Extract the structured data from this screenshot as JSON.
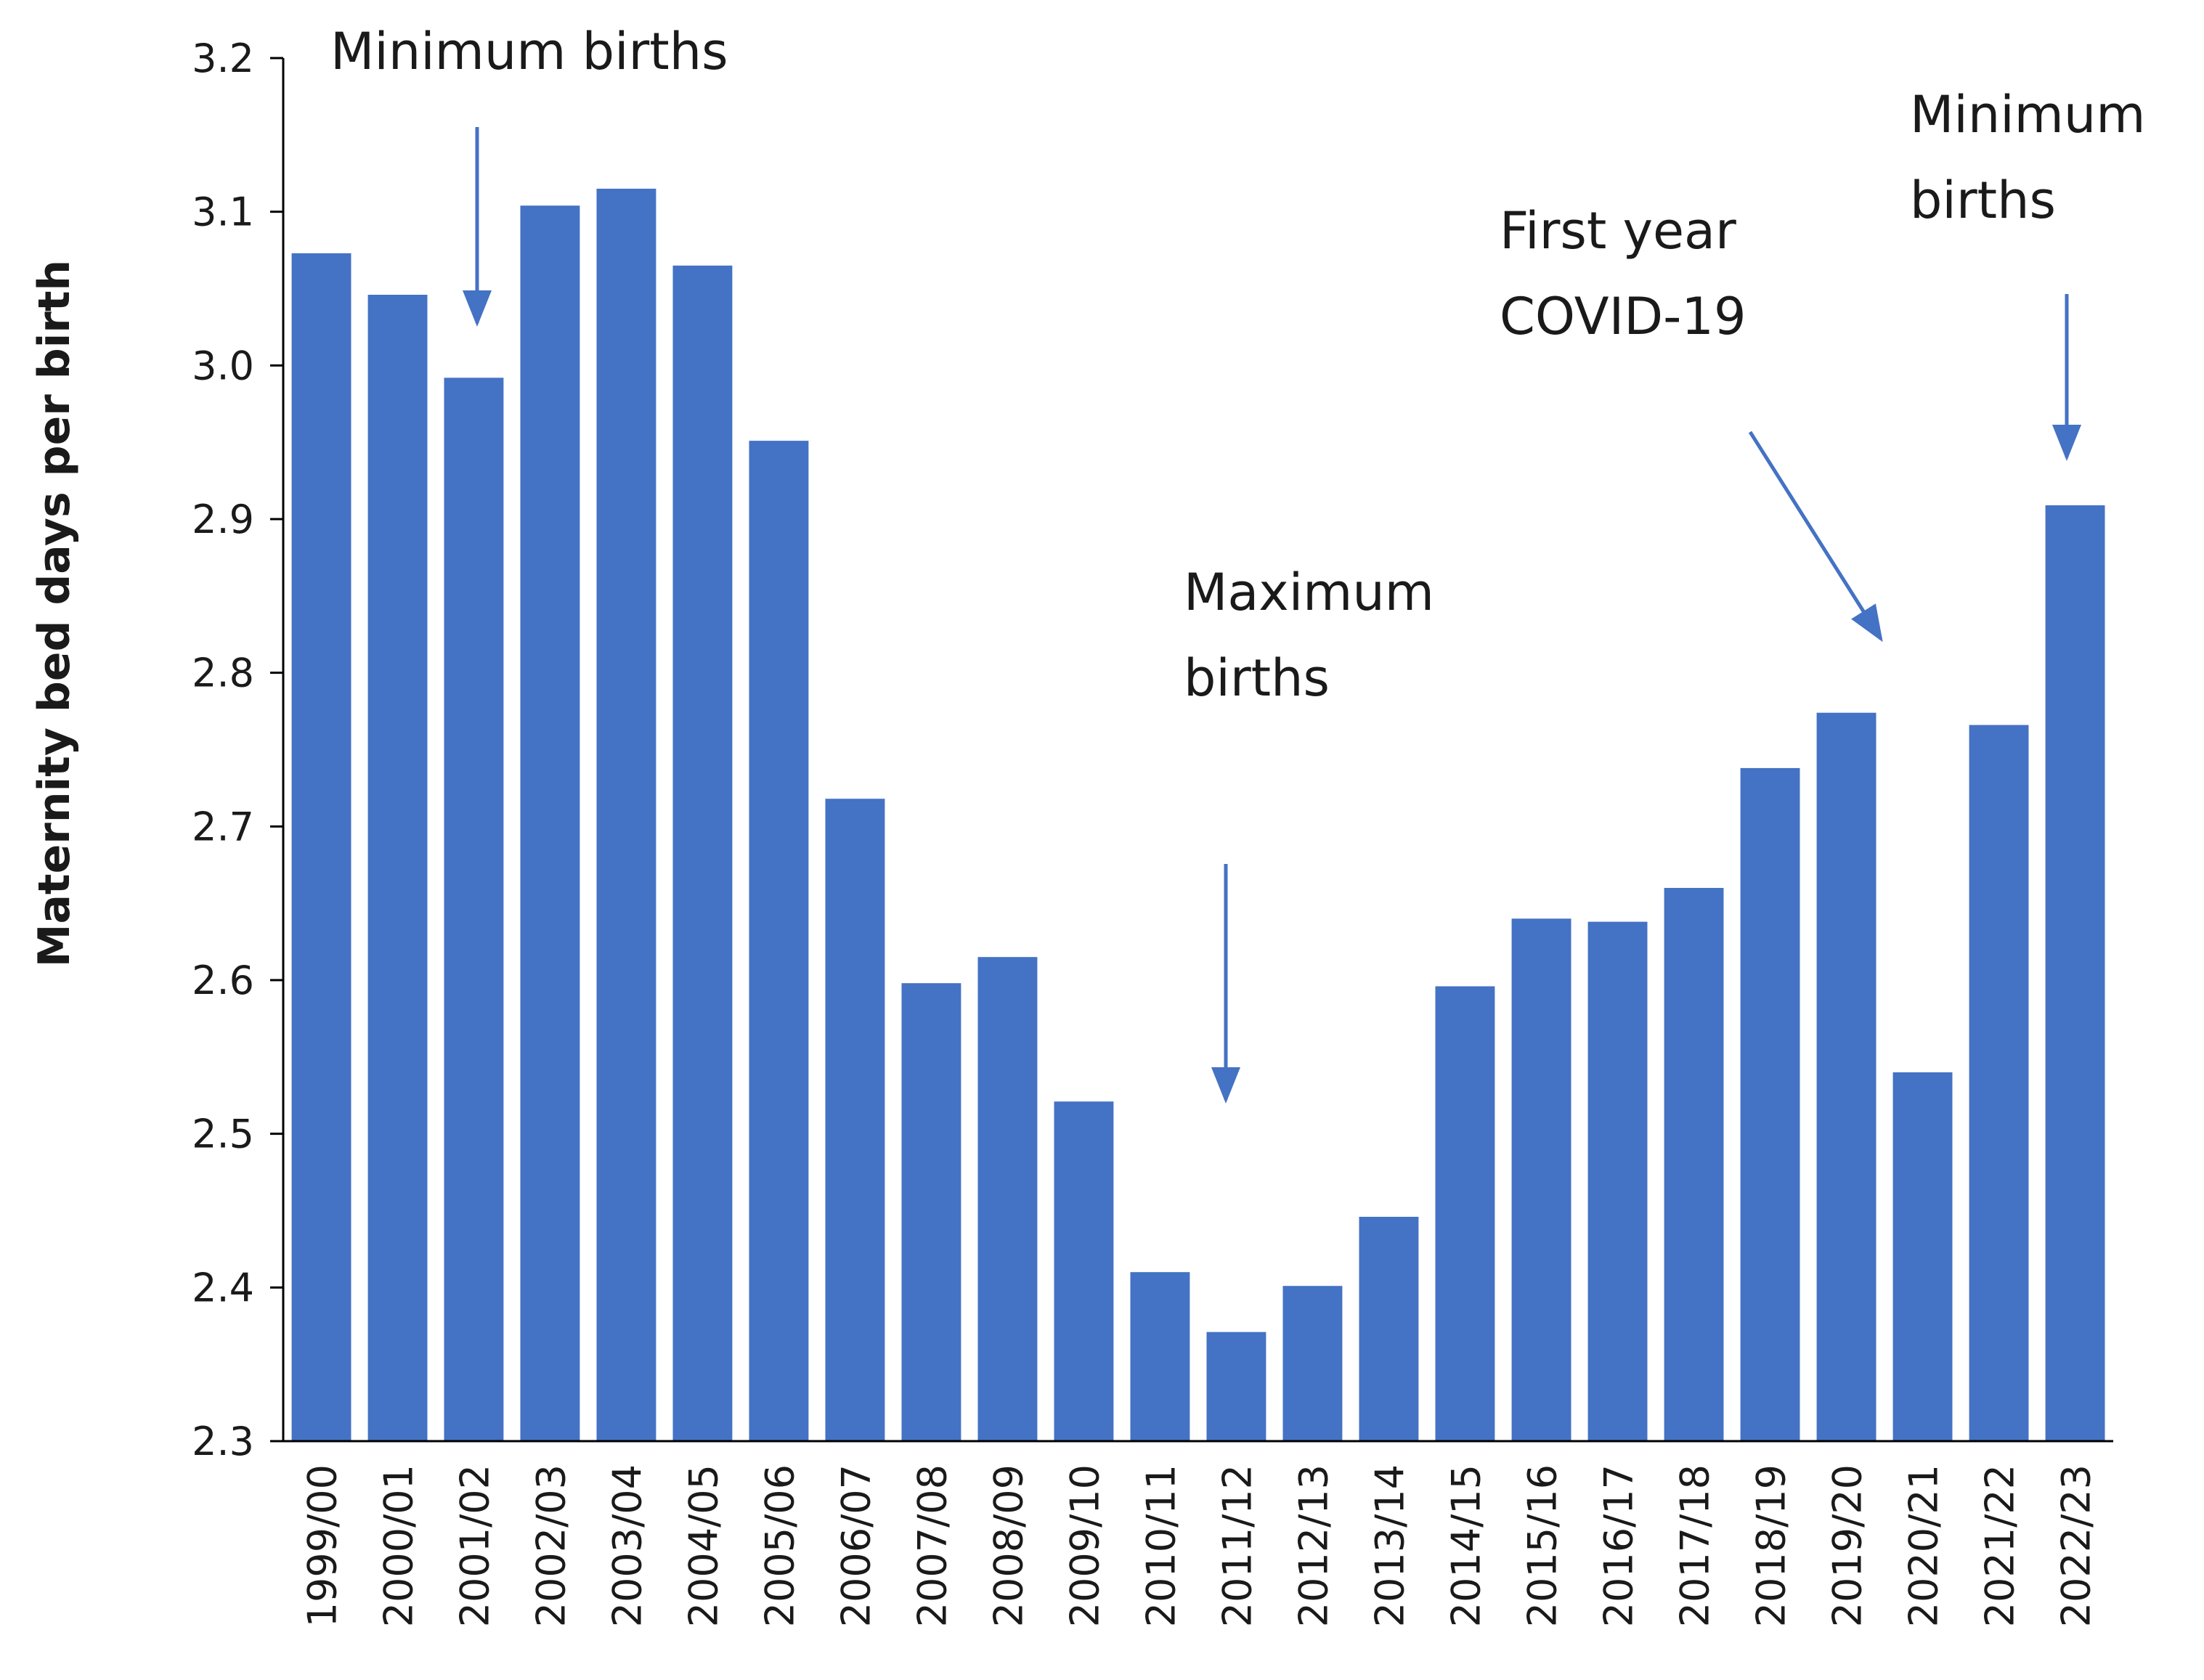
{
  "chart_data": {
    "type": "bar",
    "title": "",
    "xlabel": "",
    "ylabel": "Maternity bed days per birth",
    "ylim": [
      2.3,
      3.2
    ],
    "yticks": [
      2.3,
      2.4,
      2.5,
      2.6,
      2.7,
      2.8,
      2.9,
      3.0,
      3.1,
      3.2
    ],
    "ytick_labels": [
      "2.3",
      "2.4",
      "2.5",
      "2.6",
      "2.7",
      "2.8",
      "2.9",
      "3.0",
      "3.1",
      "3.2"
    ],
    "grid": false,
    "bar_color": "#4472C4",
    "arrow_color": "#4472C4",
    "categories": [
      "1999/00",
      "2000/01",
      "2001/02",
      "2002/03",
      "2003/04",
      "2004/05",
      "2005/06",
      "2006/07",
      "2007/08",
      "2008/09",
      "2009/10",
      "2010/11",
      "2011/12",
      "2012/13",
      "2013/14",
      "2014/15",
      "2015/16",
      "2016/17",
      "2017/18",
      "2018/19",
      "2019/20",
      "2020/21",
      "2021/22",
      "2022/23"
    ],
    "values": [
      3.073,
      3.046,
      2.992,
      3.104,
      3.115,
      3.065,
      2.951,
      2.718,
      2.598,
      2.615,
      2.521,
      2.41,
      2.371,
      2.401,
      2.446,
      2.596,
      2.64,
      2.638,
      2.66,
      2.738,
      2.774,
      2.54,
      2.766,
      2.909
    ],
    "annotations": [
      {
        "lines": [
          "Minimum births"
        ],
        "target_category": "2001/02"
      },
      {
        "lines": [
          "Maximum",
          "births"
        ],
        "target_category": "2011/12"
      },
      {
        "lines": [
          "First year",
          "COVID-19"
        ],
        "target_category": "2019/20"
      },
      {
        "lines": [
          "Minimum",
          "births"
        ],
        "target_category": "2022/23"
      }
    ]
  }
}
